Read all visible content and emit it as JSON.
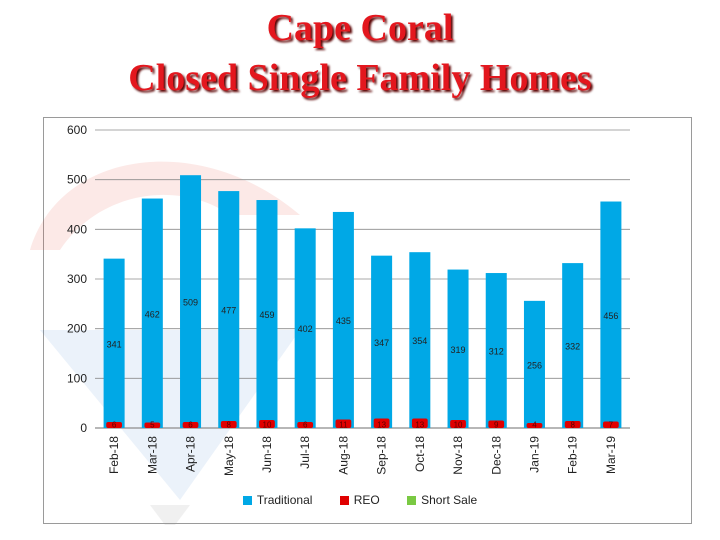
{
  "title_line1": "Cape Coral",
  "title_line2": "Closed Single Family Homes",
  "colors": {
    "title": "#e3171e",
    "traditional": "#00a8e6",
    "reo": "#e00000",
    "short_sale": "#7ac943",
    "grid": "#8c8c8c"
  },
  "chart_data": {
    "type": "bar",
    "categories": [
      "Feb-18",
      "Mar-18",
      "Apr-18",
      "May-18",
      "Jun-18",
      "Jul-18",
      "Aug-18",
      "Sep-18",
      "Oct-18",
      "Nov-18",
      "Dec-18",
      "Jan-19",
      "Feb-19",
      "Mar-19"
    ],
    "series": [
      {
        "name": "Traditional",
        "values": [
          341,
          462,
          509,
          477,
          459,
          402,
          435,
          347,
          354,
          319,
          312,
          256,
          332,
          456
        ]
      },
      {
        "name": "REO",
        "values": [
          6,
          5,
          6,
          8,
          10,
          6,
          11,
          13,
          13,
          10,
          9,
          4,
          8,
          7
        ]
      },
      {
        "name": "Short Sale",
        "values": [
          null,
          null,
          null,
          null,
          null,
          null,
          null,
          null,
          null,
          null,
          null,
          null,
          null,
          null
        ]
      }
    ],
    "y_ticks": [
      0,
      100,
      200,
      300,
      400,
      500,
      600
    ],
    "ylim": [
      0,
      600
    ],
    "grid": true,
    "legend_position": "bottom"
  }
}
